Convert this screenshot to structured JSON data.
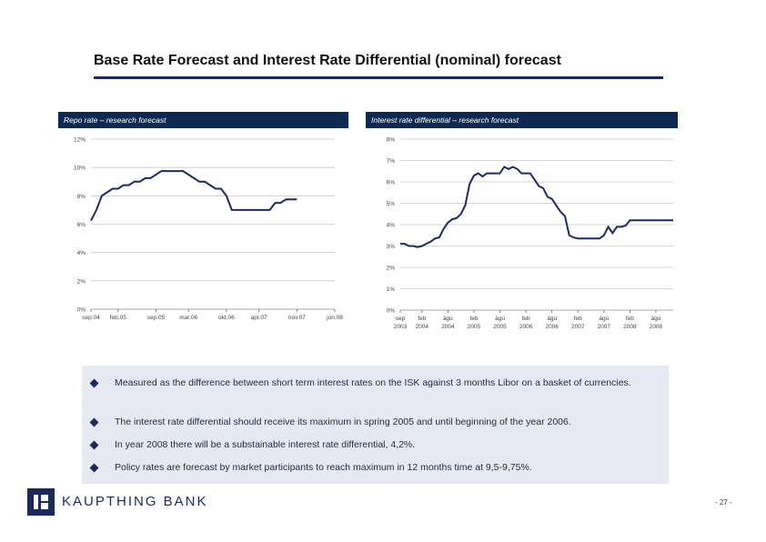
{
  "title": "Base Rate Forecast and Interest Rate Differential (nominal) forecast",
  "bullets": [
    "Measured as the difference between short term interest rates on the ISK against 3 months Libor on a basket of currencies.",
    "The interest rate differential should receive its maximum in spring 2005 and until beginning of the year 2006.",
    "In year 2008 there will be a substainable interest rate differential, 4,2%.",
    "Policy rates are forecast by market participants to reach maximum in 12 months time at 9,5-9,75%."
  ],
  "logo": "KAUPTHING BANK",
  "page_number": "- 27 -",
  "chart_data": [
    {
      "type": "line",
      "title": "Repo rate – research forecast",
      "color": "#1b2a6b",
      "grid": true,
      "categories": [
        "sep.04",
        null,
        null,
        null,
        null,
        "feb.05",
        null,
        null,
        null,
        null,
        null,
        null,
        "sep.05",
        null,
        null,
        null,
        null,
        null,
        "mar.06",
        null,
        null,
        null,
        null,
        null,
        null,
        "okt.06",
        null,
        null,
        null,
        null,
        null,
        "apr.07",
        null,
        null,
        null,
        null,
        null,
        null,
        "nov.07",
        null,
        null,
        null,
        null,
        null,
        null,
        "jún.08"
      ],
      "values": [
        6.25,
        7.0,
        8.0,
        8.25,
        8.5,
        8.5,
        8.75,
        8.75,
        9.0,
        9.0,
        9.25,
        9.25,
        9.5,
        9.75,
        9.75,
        9.75,
        9.75,
        9.75,
        9.5,
        9.25,
        9.0,
        9.0,
        8.75,
        8.5,
        8.5,
        8.0,
        7.0,
        7.0,
        7.0,
        7.0,
        7.0,
        7.0,
        7.0,
        7.0,
        7.5,
        7.5,
        7.75,
        7.75,
        7.75,
        null,
        null,
        null,
        null,
        null,
        null,
        null
      ],
      "ylim": [
        0,
        12
      ],
      "yticks": [
        {
          "value": 0,
          "label": "0%"
        },
        {
          "value": 2,
          "label": "2%"
        },
        {
          "value": 4,
          "label": "4%"
        },
        {
          "value": 6,
          "label": "6%"
        },
        {
          "value": 8,
          "label": "8%"
        },
        {
          "value": 10,
          "label": "10%"
        },
        {
          "value": 12,
          "label": "12%"
        }
      ]
    },
    {
      "type": "line",
      "title": "Interest rate differential – research forecast",
      "color": "#1b2a6b",
      "grid": true,
      "categories": [
        "sep 2003",
        null,
        null,
        null,
        null,
        "feb 2004",
        null,
        null,
        null,
        null,
        null,
        "ágú 2004",
        null,
        null,
        null,
        null,
        null,
        "feb 2005",
        null,
        null,
        null,
        null,
        null,
        "ágú 2005",
        null,
        null,
        null,
        null,
        null,
        "feb 2006",
        null,
        null,
        null,
        null,
        null,
        "ágú 2006",
        null,
        null,
        null,
        null,
        null,
        "feb 2007",
        null,
        null,
        null,
        null,
        null,
        "ágú 2007",
        null,
        null,
        null,
        null,
        null,
        "feb 2008",
        null,
        null,
        null,
        null,
        null,
        "ágú 2008",
        null,
        null,
        null,
        null
      ],
      "values": [
        3.1,
        3.1,
        3.0,
        3.0,
        2.95,
        3.0,
        3.1,
        3.2,
        3.35,
        3.4,
        3.8,
        4.1,
        4.25,
        4.3,
        4.5,
        4.9,
        5.9,
        6.3,
        6.4,
        6.25,
        6.4,
        6.4,
        6.4,
        6.4,
        6.7,
        6.6,
        6.7,
        6.6,
        6.4,
        6.4,
        6.4,
        6.1,
        5.8,
        5.7,
        5.3,
        5.2,
        4.9,
        4.6,
        4.4,
        3.5,
        3.4,
        3.35,
        3.35,
        3.35,
        3.35,
        3.35,
        3.35,
        3.5,
        3.9,
        3.6,
        3.9,
        3.9,
        3.95,
        4.2,
        4.2,
        4.2,
        4.2,
        4.2,
        4.2,
        4.2,
        4.2,
        4.2,
        4.2,
        4.2
      ],
      "ylim": [
        0,
        8
      ],
      "yticks": [
        {
          "value": 0,
          "label": "0%"
        },
        {
          "value": 1,
          "label": "1%"
        },
        {
          "value": 2,
          "label": "2%"
        },
        {
          "value": 3,
          "label": "3%"
        },
        {
          "value": 4,
          "label": "4%"
        },
        {
          "value": 5,
          "label": "5%"
        },
        {
          "value": 6,
          "label": "6%"
        },
        {
          "value": 7,
          "label": "7%"
        },
        {
          "value": 8,
          "label": "8%"
        }
      ]
    }
  ]
}
